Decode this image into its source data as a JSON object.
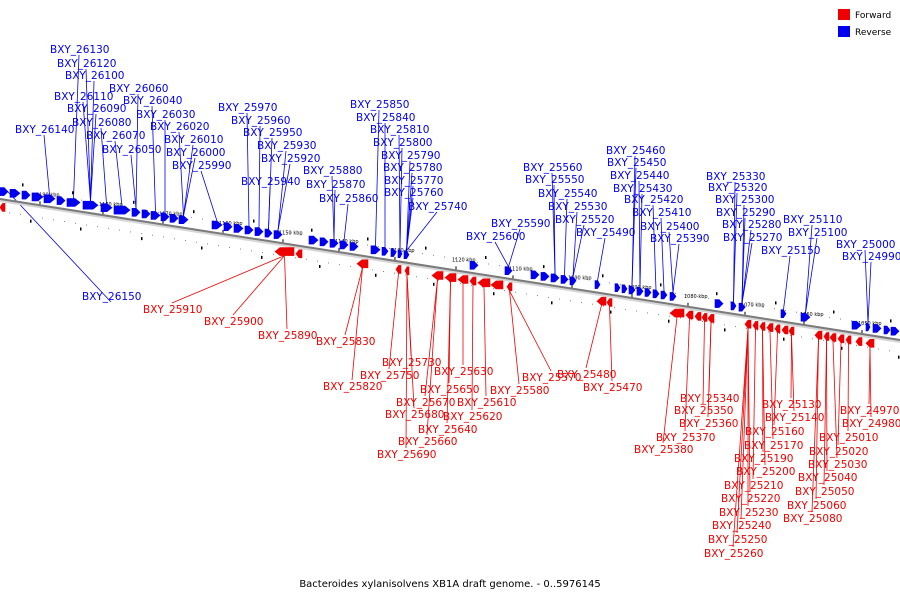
{
  "caption": "Bacteroides xylanisolvens XB1A draft genome. - 0..5976145",
  "legend": [
    {
      "label": "Forward",
      "color": "#ee0000"
    },
    {
      "label": "Reverse",
      "color": "#0000ee"
    }
  ],
  "axis_ticks": [
    "1190 kbp",
    "1180 kbp",
    "1170 kbp",
    "1160 kbp",
    "1150 kbp",
    "1140 kbp",
    "1130 kbp",
    "1120 kbp",
    "1110 kbp",
    "1100 kbp",
    "1090 kbp",
    "1080 kbp",
    "1070 kbp",
    "1060 kbp",
    "1050 kbp"
  ],
  "reverse_labels": [
    "BXY_26130",
    "BXY_26120",
    "BXY_26100",
    "BXY_26060",
    "BXY_26110",
    "BXY_26040",
    "BXY_26090",
    "BXY_26030",
    "BXY_26080",
    "BXY_26020",
    "BXY_26140",
    "BXY_26070",
    "BXY_26010",
    "BXY_26050",
    "BXY_26000",
    "BXY_25990",
    "BXY_25970",
    "BXY_25960",
    "BXY_25950",
    "BXY_25930",
    "BXY_25920",
    "BXY_25940",
    "BXY_25850",
    "BXY_25840",
    "BXY_25810",
    "BXY_25800",
    "BXY_25790",
    "BXY_25880",
    "BXY_25780",
    "BXY_25870",
    "BXY_25770",
    "BXY_25760",
    "BXY_25860",
    "BXY_25740",
    "BXY_25560",
    "BXY_25550",
    "BXY_25540",
    "BXY_25530",
    "BXY_25590",
    "BXY_25520",
    "BXY_25600",
    "BXY_25490",
    "BXY_25460",
    "BXY_25450",
    "BXY_25440",
    "BXY_25430",
    "BXY_25420",
    "BXY_25410",
    "BXY_25400",
    "BXY_25390",
    "BXY_25330",
    "BXY_25320",
    "BXY_25300",
    "BXY_25290",
    "BXY_25280",
    "BXY_25270",
    "BXY_25110",
    "BXY_25100",
    "BXY_25150",
    "BXY_25000",
    "BXY_24990",
    "BXY_26150"
  ],
  "forward_labels": [
    "BXY_25910",
    "BXY_25900",
    "BXY_25890",
    "BXY_25830",
    "BXY_25820",
    "BXY_25730",
    "BXY_25750",
    "BXY_25630",
    "BXY_25650",
    "BXY_25580",
    "BXY_25570",
    "BXY_25670",
    "BXY_25610",
    "BXY_25680",
    "BXY_25620",
    "BXY_25640",
    "BXY_25660",
    "BXY_25690",
    "BXY_25480",
    "BXY_25470",
    "BXY_25340",
    "BXY_25350",
    "BXY_25360",
    "BXY_25370",
    "BXY_25380",
    "BXY_25130",
    "BXY_25140",
    "BXY_25160",
    "BXY_25170",
    "BXY_25190",
    "BXY_25200",
    "BXY_25210",
    "BXY_25220",
    "BXY_25230",
    "BXY_25240",
    "BXY_25250",
    "BXY_25260",
    "BXY_24970",
    "BXY_24980",
    "BXY_25010",
    "BXY_25020",
    "BXY_25030",
    "BXY_25040",
    "BXY_25050",
    "BXY_25060",
    "BXY_25080"
  ]
}
